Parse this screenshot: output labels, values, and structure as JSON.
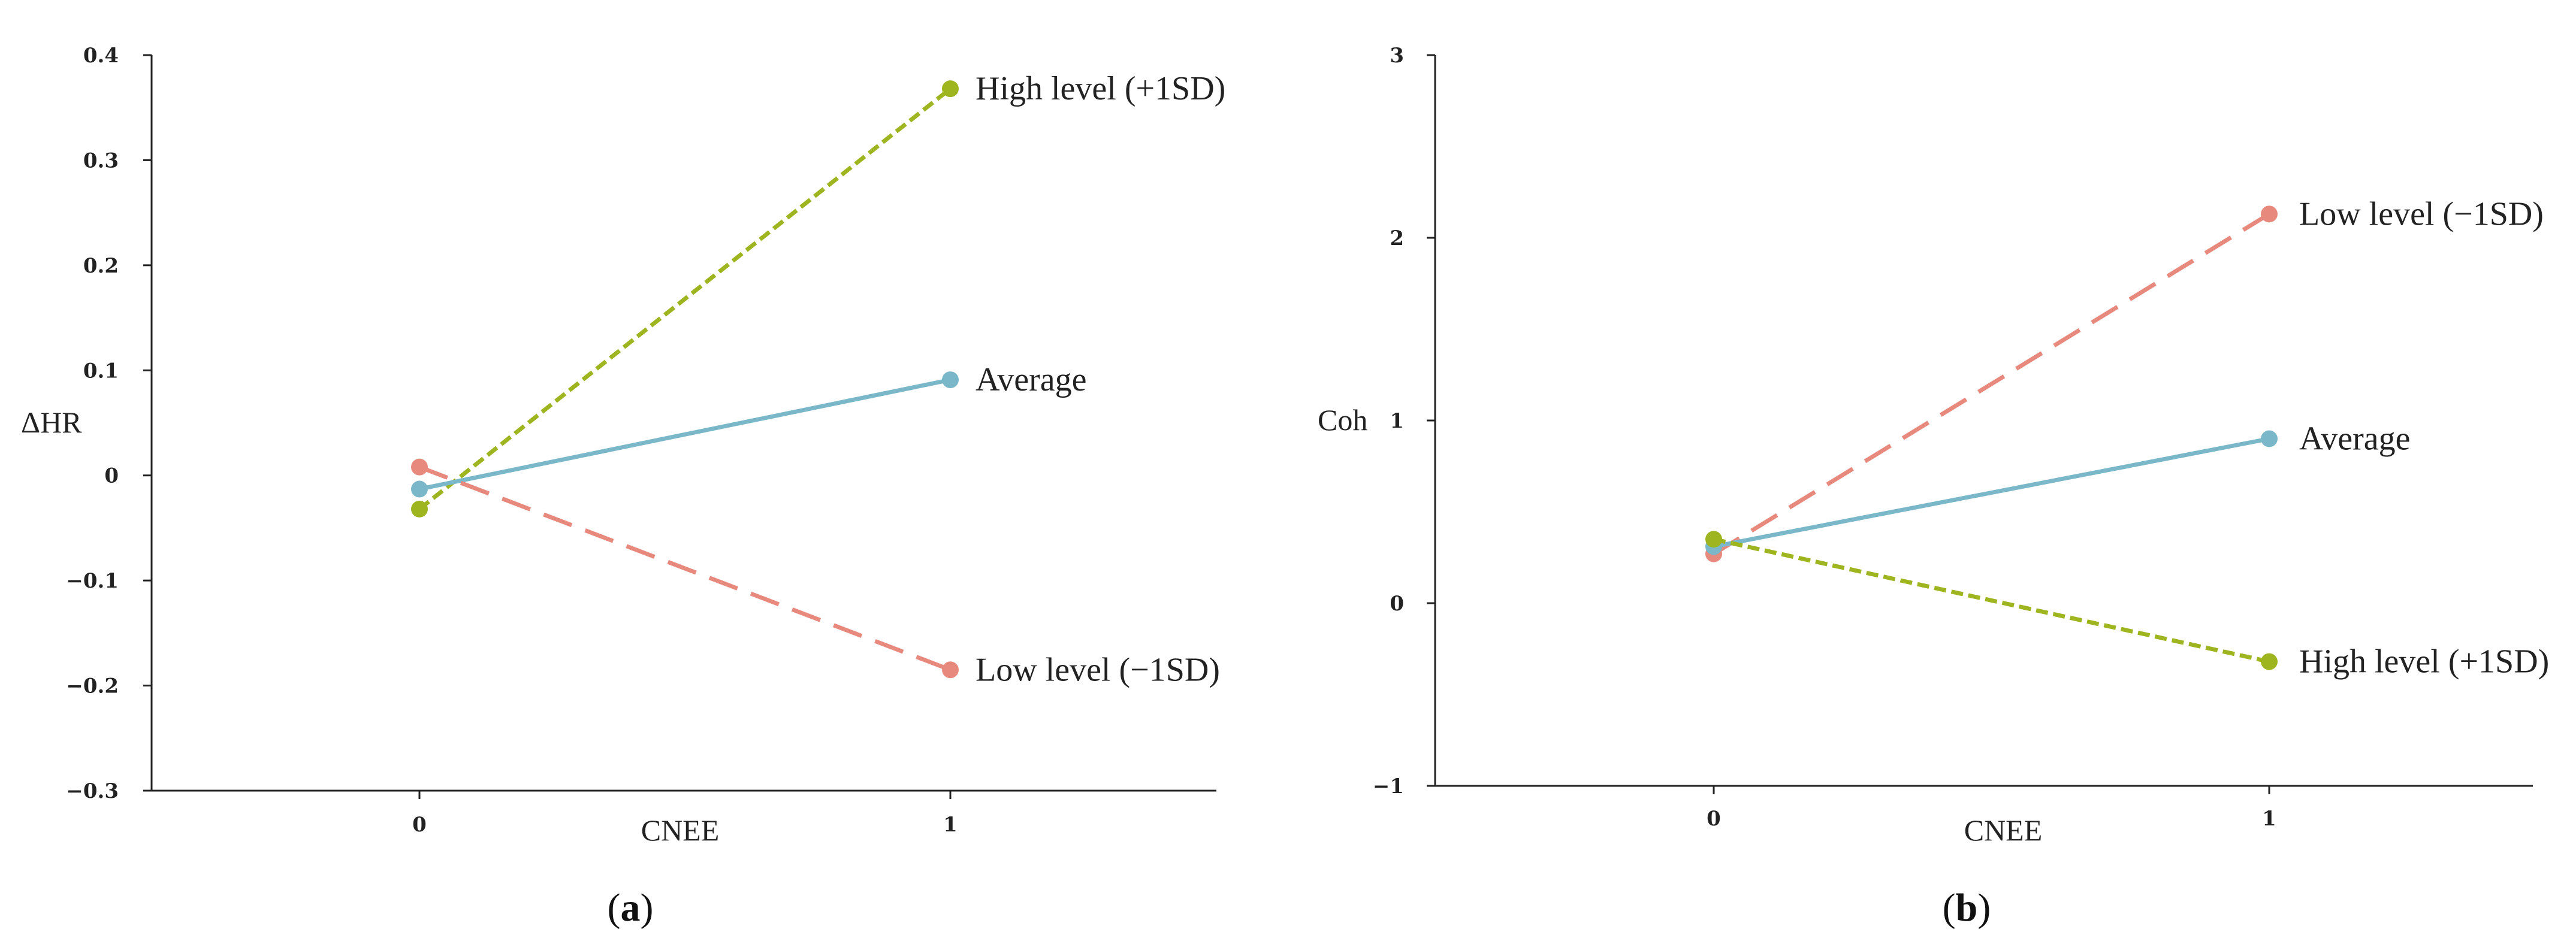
{
  "colors": {
    "high": "#9eb51f",
    "average": "#7ab8c9",
    "low": "#e8897e",
    "axis": "#222222"
  },
  "chart_data": [
    {
      "type": "line",
      "panel": "a",
      "panel_label": {
        "open": "(",
        "letter": "a",
        "close": ")"
      },
      "xlabel": "CNEE",
      "ylabel": "ΔHR",
      "x": [
        0,
        1
      ],
      "x_tick_labels": [
        "0",
        "1"
      ],
      "xlim": [
        -0.5,
        1.5
      ],
      "ylim": [
        -0.3,
        0.4
      ],
      "y_ticks": [
        0.4,
        0.3,
        0.2,
        0.1,
        0,
        -0.1,
        -0.2,
        -0.3
      ],
      "y_tick_labels": [
        "0.4",
        "0.3",
        "0.2",
        "0.1",
        "0",
        "−0.1",
        "−0.2",
        "−0.3"
      ],
      "series": [
        {
          "key": "high",
          "name": "High level (+1SD)",
          "values": [
            -0.032,
            0.368
          ],
          "dash": "short"
        },
        {
          "key": "average",
          "name": "Average",
          "values": [
            -0.013,
            0.091
          ],
          "dash": "solid"
        },
        {
          "key": "low",
          "name": "Low level (−1SD)",
          "values": [
            0.008,
            -0.185
          ],
          "dash": "long"
        }
      ]
    },
    {
      "type": "line",
      "panel": "b",
      "panel_label": {
        "open": "(",
        "letter": "b",
        "close": ")"
      },
      "xlabel": "CNEE",
      "ylabel": "Coh",
      "x": [
        0,
        1
      ],
      "x_tick_labels": [
        "0",
        "1"
      ],
      "xlim": [
        -0.5,
        1.5
      ],
      "ylim": [
        -1,
        3
      ],
      "y_ticks": [
        3,
        2,
        1,
        0,
        -1
      ],
      "y_tick_labels": [
        "3",
        "2",
        "1",
        "0",
        "−1"
      ],
      "series": [
        {
          "key": "low",
          "name": "Low level (−1SD)",
          "values": [
            0.27,
            2.13
          ],
          "dash": "long"
        },
        {
          "key": "average",
          "name": "Average",
          "values": [
            0.31,
            0.9
          ],
          "dash": "solid"
        },
        {
          "key": "high",
          "name": "High level (+1SD)",
          "values": [
            0.35,
            -0.32
          ],
          "dash": "short"
        }
      ]
    }
  ]
}
